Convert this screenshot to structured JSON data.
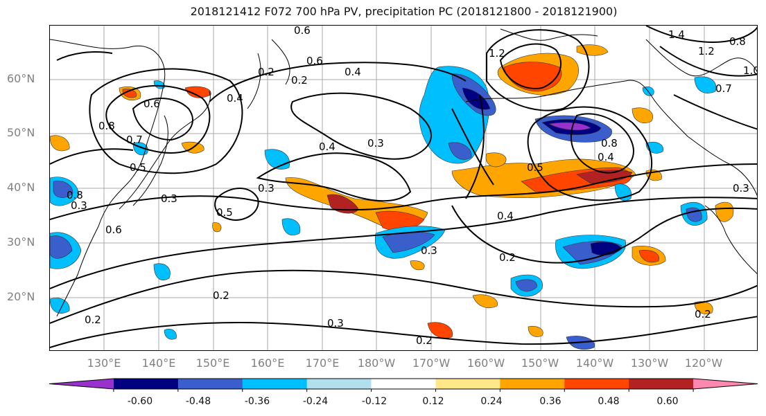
{
  "title": "2018121412 F072 700 hPa PV, precipitation PC (2018121800 - 2018121900)",
  "lat_labels": [
    "60°N",
    "50°N",
    "40°N",
    "30°N",
    "20°N"
  ],
  "lon_labels": [
    "130°E",
    "140°E",
    "150°E",
    "160°E",
    "170°E",
    "180°W",
    "170°W",
    "160°W",
    "150°W",
    "140°W",
    "130°W",
    "120°W"
  ],
  "colorbar": {
    "colors": [
      "#9932cc",
      "#000080",
      "#3a5fcd",
      "#00bfff",
      "#b2dfee",
      "#ffffff",
      "#ffe88a",
      "#ffa500",
      "#ff4500",
      "#b22222",
      "#ff88b0"
    ],
    "ticks": [
      "-0.60",
      "-0.48",
      "-0.36",
      "-0.24",
      "-0.12",
      "0.12",
      "0.24",
      "0.36",
      "0.48",
      "0.60"
    ]
  },
  "contour_labels": [
    "0.6",
    "0.6",
    "0.2",
    "0.4",
    "0.2",
    "1.2",
    "1.4",
    "1.2",
    "0.8",
    "1.0",
    "0.7",
    "0.8",
    "0.6",
    "0.8",
    "0.7",
    "0.4",
    "0.3",
    "0.4",
    "0.5",
    "0.3",
    "0.8",
    "0.6",
    "0.5",
    "0.3",
    "0.5",
    "0.4",
    "0.3",
    "0.2",
    "0.2",
    "0.3",
    "0.2",
    "0.2",
    "0.2",
    "0.4",
    "0.3",
    "0.3"
  ]
}
